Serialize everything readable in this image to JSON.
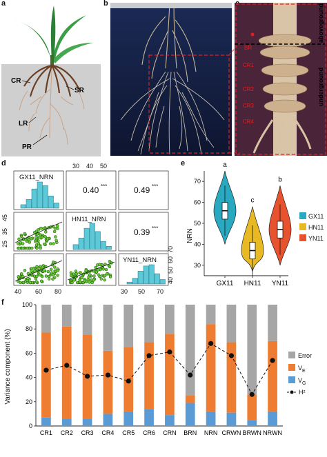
{
  "panels": {
    "a": {
      "letter": "a",
      "labels": {
        "cr": "CR",
        "sr": "SR",
        "lr": "LR",
        "pr": "PR"
      },
      "colors": {
        "soil": "#cfcfcf",
        "root": "#7a4a2e",
        "leaf": "#2e8b3a"
      }
    },
    "b": {
      "letter": "b"
    },
    "c": {
      "letter": "c",
      "side_labels": {
        "above": "aboveground",
        "under": "underground"
      },
      "root_labels": [
        "BR",
        "CR1",
        "CR2",
        "CR3",
        "CR4"
      ]
    },
    "d": {
      "letter": "d",
      "diag_labels": [
        "GX11_NRN",
        "HN11_NRN",
        "YN11_NRN"
      ],
      "correlations": [
        {
          "value": "0.40",
          "sig": "***"
        },
        {
          "value": "0.49",
          "sig": "***"
        },
        {
          "value": "0.39",
          "sig": "***"
        }
      ],
      "top_ticks": [
        "30",
        "40",
        "50"
      ],
      "left_ticks": [
        "45",
        "35",
        "25"
      ],
      "right_ticks": [
        "70",
        "60",
        "50",
        "40"
      ],
      "bottom_ticks": [
        "40",
        "60",
        "80",
        "30",
        "50",
        "70"
      ],
      "colors": {
        "hist": "#5cc8d8",
        "point": "#66cc33"
      }
    },
    "e": {
      "letter": "e",
      "ylabel": "NRN",
      "yticks": [
        "70",
        "60",
        "50",
        "40",
        "30"
      ],
      "groups": [
        {
          "name": "GX11",
          "letter": "a",
          "color": "#29a9c0",
          "median": 56
        },
        {
          "name": "HN11",
          "letter": "c",
          "color": "#e8b923",
          "median": 37
        },
        {
          "name": "YN11",
          "letter": "b",
          "color": "#e8532f",
          "median": 47
        }
      ]
    },
    "f": {
      "letter": "f"
    }
  },
  "chart_data": {
    "type": "bar",
    "ylabel": "Variance component (%)",
    "ylim": [
      0,
      100
    ],
    "yticks": [
      "100",
      "80",
      "60",
      "40",
      "20",
      "0"
    ],
    "categories": [
      "CR1",
      "CR2",
      "CR3",
      "CR4",
      "CR5",
      "CR6",
      "CRN",
      "BRN",
      "NRN",
      "CRWN",
      "BRWN",
      "NRWN"
    ],
    "series": [
      {
        "name": "V_G",
        "color": "#5a9bd5",
        "values": [
          7,
          6,
          6,
          10,
          12,
          14,
          9,
          19,
          12,
          11,
          5,
          12
        ]
      },
      {
        "name": "V_E",
        "color": "#ef7d31",
        "values": [
          70,
          76,
          69,
          52,
          53,
          55,
          67,
          6,
          72,
          58,
          21,
          58
        ]
      },
      {
        "name": "Error",
        "color": "#a6a6a6",
        "values": [
          23,
          18,
          25,
          38,
          35,
          31,
          24,
          75,
          16,
          31,
          74,
          30
        ]
      }
    ],
    "h2": {
      "name": "H²",
      "values": [
        46,
        50,
        41,
        42,
        37,
        58,
        61,
        42,
        68,
        58,
        26,
        54
      ]
    },
    "legend": [
      "Error",
      "V_E",
      "V_G",
      "H²"
    ],
    "legend_placement": "right"
  }
}
